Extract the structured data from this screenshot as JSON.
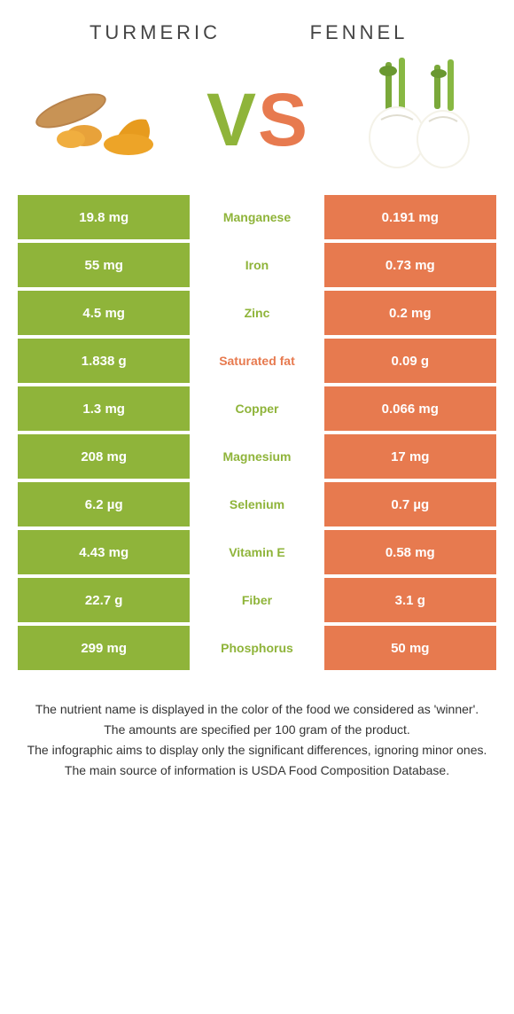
{
  "colors": {
    "left": "#8fb43a",
    "right": "#e77a4f",
    "left_label": "#8fb43a",
    "right_label": "#e77a4f"
  },
  "header": {
    "left_title": "TURMERIC",
    "right_title": "FENNEL"
  },
  "vs": {
    "v": "V",
    "s": "S"
  },
  "rows": [
    {
      "left": "19.8 mg",
      "label": "Manganese",
      "right": "0.191 mg",
      "winner": "left"
    },
    {
      "left": "55 mg",
      "label": "Iron",
      "right": "0.73 mg",
      "winner": "left"
    },
    {
      "left": "4.5 mg",
      "label": "Zinc",
      "right": "0.2 mg",
      "winner": "left"
    },
    {
      "left": "1.838 g",
      "label": "Saturated fat",
      "right": "0.09 g",
      "winner": "right"
    },
    {
      "left": "1.3 mg",
      "label": "Copper",
      "right": "0.066 mg",
      "winner": "left"
    },
    {
      "left": "208 mg",
      "label": "Magnesium",
      "right": "17 mg",
      "winner": "left"
    },
    {
      "left": "6.2 µg",
      "label": "Selenium",
      "right": "0.7 µg",
      "winner": "left"
    },
    {
      "left": "4.43 mg",
      "label": "Vitamin E",
      "right": "0.58 mg",
      "winner": "left"
    },
    {
      "left": "22.7 g",
      "label": "Fiber",
      "right": "3.1 g",
      "winner": "left"
    },
    {
      "left": "299 mg",
      "label": "Phosphorus",
      "right": "50 mg",
      "winner": "left"
    }
  ],
  "footer": {
    "line1": "The nutrient name is displayed in the color of the food we considered as 'winner'.",
    "line2": "The amounts are specified per 100 gram of the product.",
    "line3": "The infographic aims to display only the significant differences, ignoring minor ones.",
    "line4": "The main source of information is USDA Food Composition Database."
  }
}
